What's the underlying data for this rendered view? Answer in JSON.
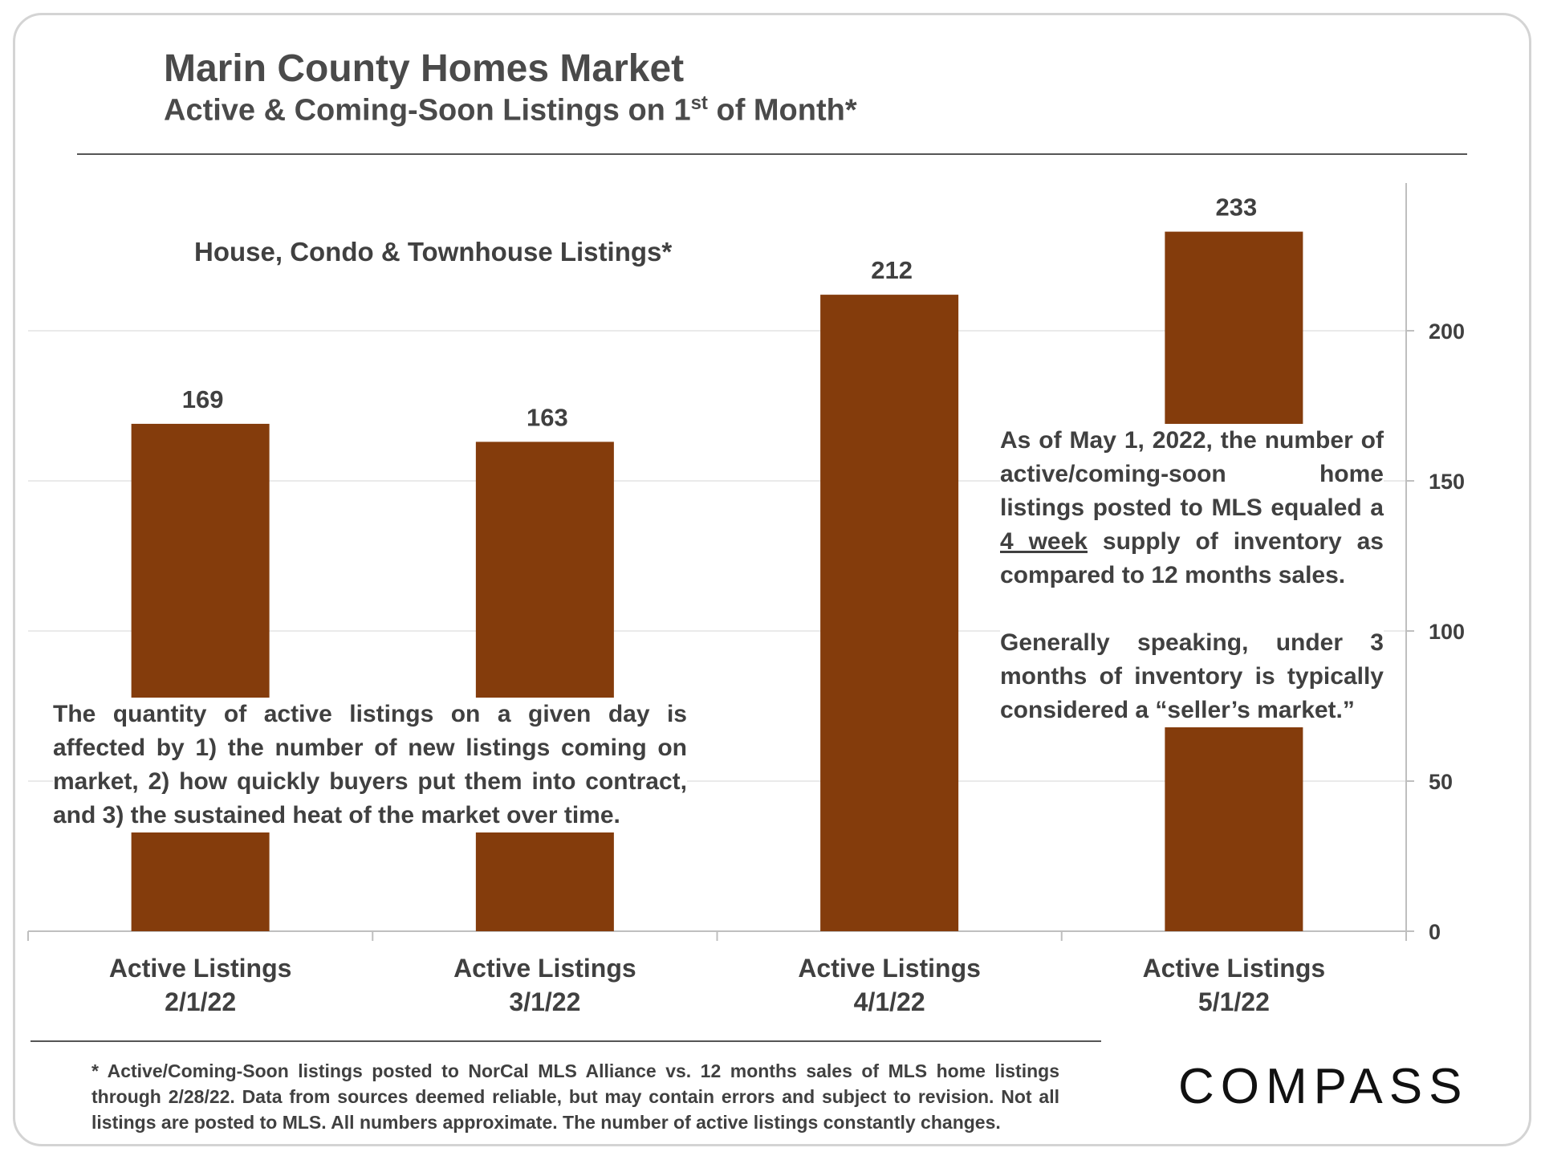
{
  "header": {
    "title": "Marin County Homes Market",
    "subtitle_pre": "Active & Coming-Soon Listings on 1",
    "subtitle_sup": "st",
    "subtitle_post": " of Month*"
  },
  "chart_data": {
    "type": "bar",
    "title": "Marin County Homes Market",
    "subtitle": "Active & Coming-Soon Listings on 1st of Month*",
    "series_label": "House, Condo & Townhouse Listings*",
    "categories": [
      [
        "Active Listings",
        "2/1/22"
      ],
      [
        "Active Listings",
        "3/1/22"
      ],
      [
        "Active Listings",
        "4/1/22"
      ],
      [
        "Active Listings",
        "5/1/22"
      ]
    ],
    "values": [
      169,
      163,
      212,
      233
    ],
    "data_labels": [
      "169",
      "163",
      "212",
      "233"
    ],
    "ylim": [
      0,
      250
    ],
    "yticks": [
      0,
      50,
      100,
      150,
      200
    ],
    "y_axis_side": "right",
    "grid": true,
    "bar_color": "#843C0C"
  },
  "notes": {
    "left": "The quantity of active listings on a given day is affected by 1) the number of new listings coming on market, 2) how quickly buyers put them into contract, and 3) the sustained heat of the market over time.",
    "right_p1_a": "As of May 1, 2022, the number of active/coming-soon home listings posted to MLS equaled a ",
    "right_p1_u": "4 week",
    "right_p1_b": " supply of inventory as compared to 12 months sales.",
    "right_p2": "Generally speaking, under 3 months of inventory is typically considered a “seller’s market.”"
  },
  "footnote": "* Active/Coming-Soon listings posted to NorCal MLS Alliance vs. 12 months sales of MLS home listings through 2/28/22. Data from sources deemed reliable, but may contain errors and subject to revision. Not all listings are posted to MLS. All numbers approximate. The number of active listings constantly changes.",
  "brand": {
    "logo_text": "COMPASS"
  }
}
